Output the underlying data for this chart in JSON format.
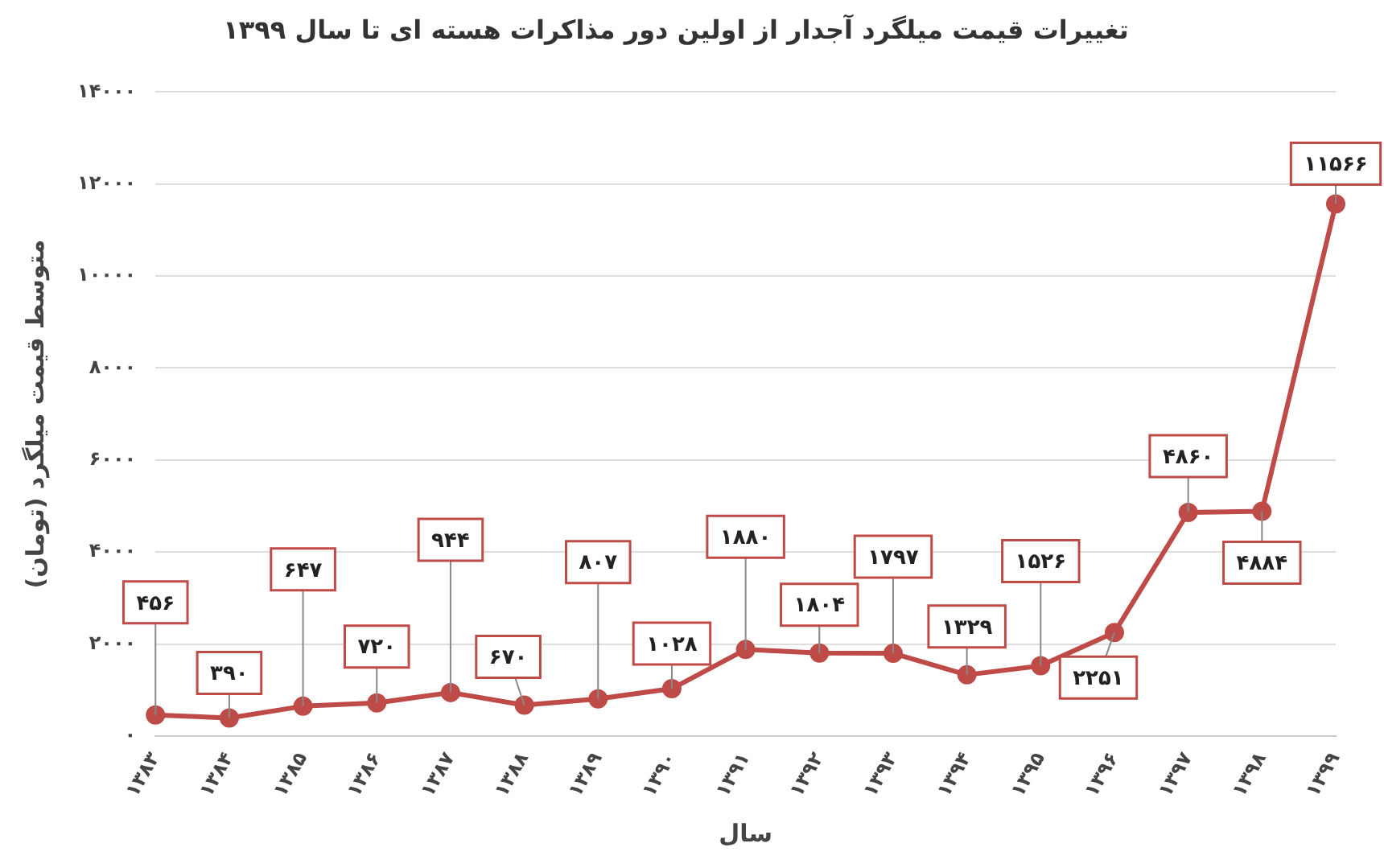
{
  "chart_data": {
    "type": "line",
    "title": "تغییرات قیمت میلگرد آجدار از اولین دور مذاکرات هسته ای تا سال ۱۳۹۹",
    "xlabel": "سال",
    "ylabel": "متوسط قیمت میلگرد (تومان)",
    "categories": [
      "۱۳۸۳",
      "۱۳۸۴",
      "۱۳۸۵",
      "۱۳۸۶",
      "۱۳۸۷",
      "۱۳۸۸",
      "۱۳۸۹",
      "۱۳۹۰",
      "۱۳۹۱",
      "۱۳۹۲",
      "۱۳۹۳",
      "۱۳۹۴",
      "۱۳۹۵",
      "۱۳۹۶",
      "۱۳۹۷",
      "۱۳۹۸",
      "۱۳۹۹"
    ],
    "series": [
      {
        "color": "#be4b48",
        "values": [
          456,
          390,
          647,
          720,
          944,
          670,
          807,
          1028,
          1880,
          1804,
          1797,
          1329,
          1526,
          2251,
          4860,
          4884,
          11566
        ],
        "value_labels": [
          "۴۵۶",
          "۳۹۰",
          "۶۴۷",
          "۷۲۰",
          "۹۴۴",
          "۶۷۰",
          "۸۰۷",
          "۱۰۲۸",
          "۱۸۸۰",
          "۱۸۰۴",
          "۱۷۹۷",
          "۱۳۲۹",
          "۱۵۲۶",
          "۲۲۵۱",
          "۴۸۶۰",
          "۴۸۸۴",
          "۱۱۵۶۶"
        ]
      }
    ],
    "ylim": [
      0,
      14000
    ],
    "yticks": [
      {
        "value": 0,
        "label": "۰"
      },
      {
        "value": 2000,
        "label": "۲۰۰۰"
      },
      {
        "value": 4000,
        "label": "۴۰۰۰"
      },
      {
        "value": 6000,
        "label": "۶۰۰۰"
      },
      {
        "value": 8000,
        "label": "۸۰۰۰"
      },
      {
        "value": 10000,
        "label": "۱۰۰۰۰"
      },
      {
        "value": 12000,
        "label": "۱۲۰۰۰"
      },
      {
        "value": 14000,
        "label": "۱۴۰۰۰"
      }
    ],
    "grid": "y",
    "legend": false,
    "marker": "circle",
    "line_style": "solid"
  }
}
